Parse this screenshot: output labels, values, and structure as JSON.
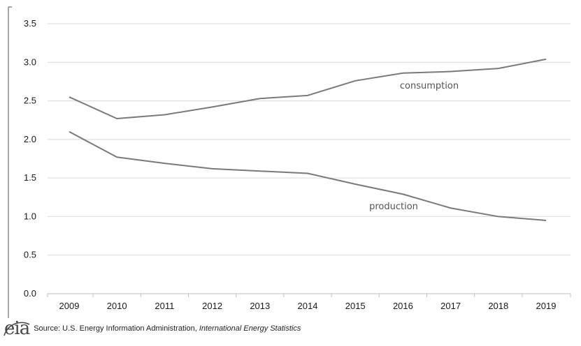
{
  "chart_data": {
    "type": "line",
    "x": [
      "2009",
      "2010",
      "2011",
      "2012",
      "2013",
      "2014",
      "2015",
      "2016",
      "2017",
      "2018",
      "2019"
    ],
    "series": [
      {
        "name": "consumption",
        "values": [
          2.55,
          2.27,
          2.32,
          2.42,
          2.53,
          2.57,
          2.76,
          2.86,
          2.88,
          2.92,
          3.04
        ]
      },
      {
        "name": "production",
        "values": [
          2.1,
          1.77,
          1.69,
          1.62,
          1.59,
          1.56,
          1.42,
          1.29,
          1.11,
          1.0,
          0.95
        ]
      }
    ],
    "ylim": [
      0,
      3.5
    ],
    "yticks": [
      "0.0",
      "0.5",
      "1.0",
      "1.5",
      "2.0",
      "2.5",
      "3.0",
      "3.5"
    ],
    "ytick_values": [
      0,
      0.5,
      1.0,
      1.5,
      2.0,
      2.5,
      3.0,
      3.5
    ],
    "grid": true,
    "colors": {
      "line": "#7a7a7a",
      "grid": "#d9d9d9",
      "axis": "#bfbfbf"
    }
  },
  "footer": {
    "logo_text": "eia",
    "source_prefix": "Source: U.S. Energy Information Administration, ",
    "source_italic": "International Energy Statistics"
  }
}
